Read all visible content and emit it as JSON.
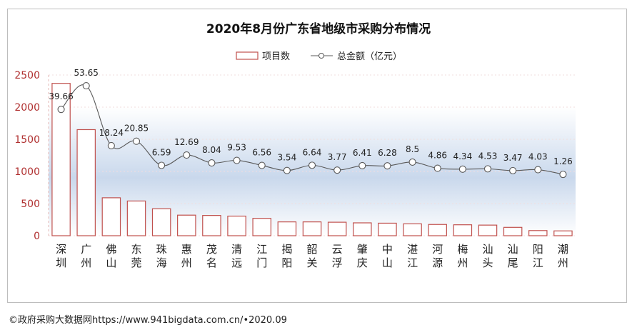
{
  "chart_data": {
    "type": "bar+line",
    "title": "2020年8月份广东省地级市采购分布情况",
    "categories": [
      "深圳",
      "广州",
      "佛山",
      "东莞",
      "珠海",
      "惠州",
      "茂名",
      "清远",
      "江门",
      "揭阳",
      "韶关",
      "云浮",
      "肇庆",
      "中山",
      "湛江",
      "河源",
      "梅州",
      "汕头",
      "汕尾",
      "阳江",
      "潮州"
    ],
    "series": [
      {
        "name": "项目数",
        "type": "bar",
        "axis": "left",
        "values": [
          2370,
          1650,
          590,
          540,
          420,
          320,
          315,
          305,
          270,
          215,
          215,
          210,
          200,
          195,
          185,
          175,
          170,
          165,
          130,
          80,
          75
        ]
      },
      {
        "name": "总金额（亿元）",
        "type": "line",
        "axis": "right",
        "values": [
          39.66,
          53.65,
          18.24,
          20.85,
          6.59,
          12.69,
          8.04,
          9.53,
          6.56,
          3.54,
          6.64,
          3.77,
          6.41,
          6.28,
          8.5,
          4.86,
          4.34,
          4.53,
          3.47,
          4.03,
          1.26
        ]
      }
    ],
    "data_labels": [
      "39.66",
      "53.65",
      "18.24",
      "20.85",
      "6.59",
      "12.69",
      "8.04",
      "9.53",
      "6.56",
      "3.54",
      "6.64",
      "3.77",
      "6.41",
      "6.28",
      "8.5",
      "4.86",
      "4.34",
      "4.53",
      "3.47",
      "4.03",
      "1.26"
    ],
    "yticks": [
      "0",
      "500",
      "1000",
      "1500",
      "2000",
      "2500"
    ],
    "ylim": [
      0,
      2500
    ],
    "y2lim": [
      -35,
      60
    ],
    "legend_position": "top-center",
    "colors": {
      "bar_edge": "#c0504d",
      "bar_fill": "#ffffff",
      "line": "#595959",
      "axis_text": "#b03030",
      "background_band": "#dbe5f1"
    }
  },
  "footer": "©政府采购大数据网https://www.941bigdata.com.cn/•2020.09"
}
